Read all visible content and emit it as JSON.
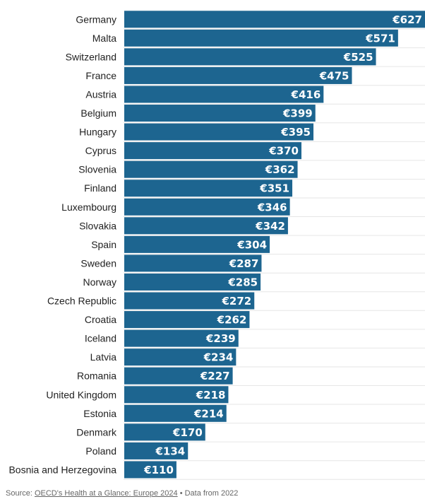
{
  "chart_data": {
    "type": "bar",
    "orientation": "horizontal",
    "categories": [
      "Germany",
      "Malta",
      "Switzerland",
      "France",
      "Austria",
      "Belgium",
      "Hungary",
      "Cyprus",
      "Slovenia",
      "Finland",
      "Luxembourg",
      "Slovakia",
      "Spain",
      "Sweden",
      "Norway",
      "Czech Republic",
      "Croatia",
      "Iceland",
      "Latvia",
      "Romania",
      "United Kingdom",
      "Estonia",
      "Denmark",
      "Poland",
      "Bosnia and Herzegovina"
    ],
    "values": [
      627,
      571,
      525,
      475,
      416,
      399,
      395,
      370,
      362,
      351,
      346,
      342,
      304,
      287,
      285,
      272,
      262,
      239,
      234,
      227,
      218,
      214,
      170,
      134,
      110
    ],
    "value_labels": [
      "€627",
      "€571",
      "€525",
      "€475",
      "€416",
      "€399",
      "€395",
      "€370",
      "€362",
      "€351",
      "€346",
      "€342",
      "€304",
      "€287",
      "€285",
      "€272",
      "€262",
      "€239",
      "€234",
      "€227",
      "€218",
      "€214",
      "€170",
      "€134",
      "€110"
    ],
    "xlim": [
      0,
      627
    ],
    "grid": true,
    "bar_color": "#1d6590"
  },
  "footer": {
    "source_prefix": "Source: ",
    "source_link": "OECD's Health at a Glance: Europe 2024",
    "source_suffix": " • Data from 2022"
  }
}
